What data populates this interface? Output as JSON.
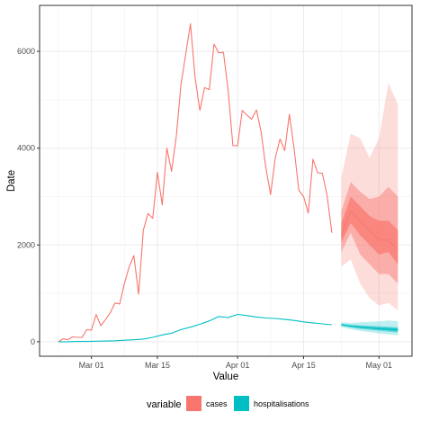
{
  "chart_data": {
    "type": "line",
    "xlabel": "Value",
    "ylabel": "Date",
    "x_range": [
      "2020-02-19",
      "2020-05-08"
    ],
    "ylim": [
      -300,
      6950
    ],
    "x_ticks": [
      {
        "date": "2020-03-01",
        "label": "Mar 01"
      },
      {
        "date": "2020-03-15",
        "label": "Mar 15"
      },
      {
        "date": "2020-04-01",
        "label": "Apr 01"
      },
      {
        "date": "2020-04-15",
        "label": "Apr 15"
      },
      {
        "date": "2020-05-01",
        "label": "May 01"
      }
    ],
    "y_ticks": [
      {
        "value": 0,
        "label": "0"
      },
      {
        "value": 2000,
        "label": "2000"
      },
      {
        "value": 4000,
        "label": "4000"
      },
      {
        "value": 6000,
        "label": "6000"
      }
    ],
    "grid": true,
    "legend": {
      "title": "variable",
      "position": "bottom",
      "entries": [
        {
          "label": "cases",
          "color": "#F8766D"
        },
        {
          "label": "hospitalisations",
          "color": "#00BFC4"
        }
      ]
    },
    "series": [
      {
        "name": "cases",
        "color": "#F8766D",
        "x": [
          "2020-02-23",
          "2020-02-24",
          "2020-02-25",
          "2020-02-26",
          "2020-02-27",
          "2020-02-28",
          "2020-02-29",
          "2020-03-01",
          "2020-03-02",
          "2020-03-03",
          "2020-03-04",
          "2020-03-05",
          "2020-03-06",
          "2020-03-07",
          "2020-03-08",
          "2020-03-09",
          "2020-03-10",
          "2020-03-11",
          "2020-03-12",
          "2020-03-13",
          "2020-03-14",
          "2020-03-15",
          "2020-03-16",
          "2020-03-17",
          "2020-03-18",
          "2020-03-19",
          "2020-03-20",
          "2020-03-21",
          "2020-03-22",
          "2020-03-23",
          "2020-03-24",
          "2020-03-25",
          "2020-03-26",
          "2020-03-27",
          "2020-03-28",
          "2020-03-29",
          "2020-03-30",
          "2020-03-31",
          "2020-04-01",
          "2020-04-02",
          "2020-04-03",
          "2020-04-04",
          "2020-04-05",
          "2020-04-06",
          "2020-04-07",
          "2020-04-08",
          "2020-04-09",
          "2020-04-10",
          "2020-04-11",
          "2020-04-12",
          "2020-04-13",
          "2020-04-14",
          "2020-04-15",
          "2020-04-16",
          "2020-04-17",
          "2020-04-18",
          "2020-04-19",
          "2020-04-20",
          "2020-04-21"
        ],
        "y": [
          0,
          60,
          40,
          100,
          90,
          90,
          250,
          240,
          560,
          330,
          460,
          600,
          800,
          780,
          1200,
          1550,
          1780,
          980,
          2300,
          2650,
          2550,
          3500,
          2830,
          4000,
          3520,
          4250,
          5320,
          5950,
          6570,
          5450,
          4780,
          5250,
          5210,
          6150,
          5970,
          5980,
          5200,
          4050,
          4050,
          4780,
          4680,
          4600,
          4790,
          4330,
          3600,
          3040,
          3800,
          4190,
          3950,
          4700,
          3980,
          3130,
          3000,
          2660,
          3770,
          3490,
          3480,
          3010,
          2250
        ]
      },
      {
        "name": "hospitalisations",
        "color": "#00BFC4",
        "x": [
          "2020-02-23",
          "2020-02-25",
          "2020-02-27",
          "2020-02-29",
          "2020-03-02",
          "2020-03-04",
          "2020-03-06",
          "2020-03-08",
          "2020-03-10",
          "2020-03-12",
          "2020-03-14",
          "2020-03-16",
          "2020-03-18",
          "2020-03-20",
          "2020-03-22",
          "2020-03-24",
          "2020-03-26",
          "2020-03-28",
          "2020-03-30",
          "2020-04-01",
          "2020-04-03",
          "2020-04-05",
          "2020-04-07",
          "2020-04-09",
          "2020-04-11",
          "2020-04-13",
          "2020-04-15",
          "2020-04-17",
          "2020-04-19",
          "2020-04-21"
        ],
        "y": [
          0,
          0,
          5,
          5,
          10,
          15,
          20,
          30,
          40,
          55,
          90,
          140,
          175,
          250,
          300,
          360,
          430,
          520,
          500,
          565,
          540,
          510,
          490,
          480,
          460,
          440,
          410,
          390,
          370,
          350
        ]
      }
    ],
    "forecasts": [
      {
        "name": "cases",
        "color": "#F8766D",
        "x": [
          "2020-04-23",
          "2020-04-25",
          "2020-04-27",
          "2020-04-29",
          "2020-05-01",
          "2020-05-03",
          "2020-05-05"
        ],
        "median": [
          2200,
          2700,
          2500,
          2300,
          2100,
          2100,
          1900
        ],
        "bands": [
          {
            "lower": [
              1550,
              1700,
              1200,
              900,
              750,
              800,
              650
            ],
            "upper": [
              3400,
              4300,
              4200,
              3800,
              4200,
              5350,
              4900
            ],
            "opacity": 0.25
          },
          {
            "lower": [
              1850,
              2250,
              1800,
              1600,
              1400,
              1400,
              1200
            ],
            "upper": [
              2700,
              3300,
              3100,
              2950,
              3000,
              3200,
              3000
            ],
            "opacity": 0.45
          },
          {
            "lower": [
              2050,
              2450,
              2200,
              2000,
              1800,
              1850,
              1600
            ],
            "upper": [
              2450,
              3000,
              2800,
              2600,
              2500,
              2500,
              2300
            ],
            "opacity": 0.7
          }
        ]
      },
      {
        "name": "hospitalisations",
        "color": "#00BFC4",
        "x": [
          "2020-04-23",
          "2020-04-25",
          "2020-04-27",
          "2020-04-29",
          "2020-05-01",
          "2020-05-03",
          "2020-05-05"
        ],
        "median": [
          350,
          320,
          300,
          285,
          270,
          255,
          245
        ],
        "bands": [
          {
            "lower": [
              300,
              260,
              220,
              200,
              170,
              150,
              130
            ],
            "upper": [
              400,
              390,
              400,
              410,
              420,
              440,
              420
            ],
            "opacity": 0.25
          },
          {
            "lower": [
              330,
              295,
              265,
              245,
              225,
              205,
              190
            ],
            "upper": [
              375,
              350,
              340,
              330,
              320,
              310,
              300
            ],
            "opacity": 0.45
          },
          {
            "lower": [
              340,
              310,
              285,
              270,
              250,
              235,
              220
            ],
            "upper": [
              360,
              335,
              320,
              305,
              295,
              285,
              275
            ],
            "opacity": 0.7
          }
        ]
      }
    ]
  }
}
